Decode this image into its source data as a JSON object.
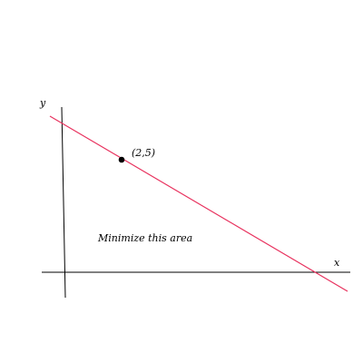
{
  "labels": {
    "y_axis": "y",
    "x_axis": "x",
    "point": "(2,5)",
    "area": "Minimize this area"
  },
  "colors": {
    "axis": "#000000",
    "line": "#e8335f",
    "point": "#000000"
  }
}
